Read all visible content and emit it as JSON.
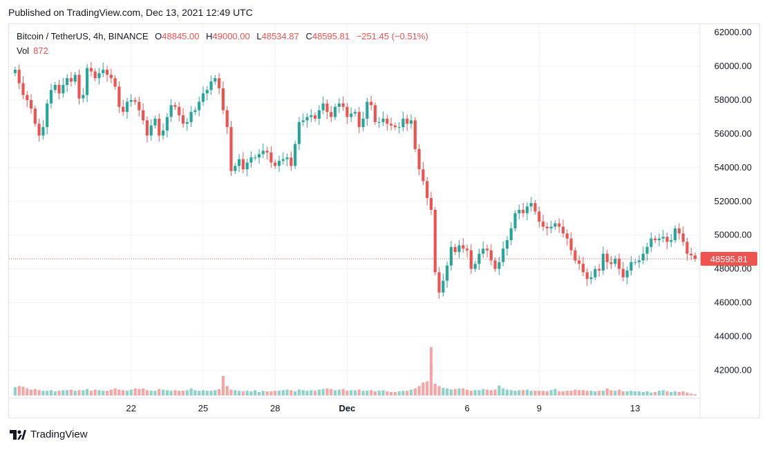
{
  "header": {
    "published": "Published on TradingView.com, Dec 13, 2021 12:49 UTC"
  },
  "legend": {
    "symbol": "Bitcoin / TetherUS, 4h, BINANCE",
    "o_label": "O",
    "o_value": "48845.00",
    "h_label": "H",
    "h_value": "49000.00",
    "l_label": "L",
    "l_value": "48534.87",
    "c_label": "C",
    "c_value": "48595.81",
    "change": "−251.45 (−0.51%)",
    "vol_label": "Vol",
    "vol_value": "872"
  },
  "footer": {
    "brand": "TradingView"
  },
  "colors": {
    "up": "#26a69a",
    "down": "#ef5350",
    "up_vol": "#8ed1c9",
    "down_vol": "#f5a6a4",
    "grid": "#f0f3fa"
  },
  "chart_data": {
    "type": "candlestick",
    "symbol": "BTCUSDT",
    "interval": "4h",
    "ylim": [
      40500,
      62500
    ],
    "y_ticks": [
      "62000.00",
      "60000.00",
      "58000.00",
      "56000.00",
      "54000.00",
      "52000.00",
      "50000.00",
      "48000.00",
      "46000.00",
      "44000.00",
      "42000.00"
    ],
    "x_ticks": [
      {
        "label": "22",
        "index": 29
      },
      {
        "label": "25",
        "index": 47
      },
      {
        "label": "28",
        "index": 65
      },
      {
        "label": "Dec",
        "index": 83
      },
      {
        "label": "6",
        "index": 113
      },
      {
        "label": "9",
        "index": 131
      },
      {
        "label": "13",
        "index": 155
      }
    ],
    "last_price": "48595.81",
    "closes": [
      59800,
      59000,
      58300,
      58000,
      57500,
      56600,
      55900,
      56400,
      57800,
      58600,
      58900,
      58400,
      58900,
      59300,
      59100,
      59500,
      58100,
      58300,
      59900,
      59700,
      59300,
      59600,
      59800,
      59500,
      59300,
      58800,
      57600,
      57300,
      57900,
      58000,
      57900,
      57400,
      56800,
      55900,
      56500,
      56900,
      55900,
      56200,
      57000,
      57700,
      57600,
      57100,
      56600,
      56700,
      57300,
      57400,
      57900,
      58400,
      58600,
      59100,
      59300,
      58700,
      57400,
      56400,
      53800,
      54100,
      54500,
      53900,
      54300,
      54600,
      54600,
      54800,
      55000,
      54900,
      54300,
      54100,
      54400,
      54500,
      54600,
      54100,
      55400,
      56700,
      56800,
      57000,
      57100,
      56900,
      57400,
      57800,
      57300,
      57000,
      57600,
      57800,
      57600,
      57000,
      57200,
      57300,
      56400,
      56900,
      57900,
      57700,
      56700,
      56700,
      56900,
      56600,
      56500,
      56400,
      56400,
      56900,
      56600,
      56800,
      55100,
      53900,
      53200,
      52200,
      51500,
      47800,
      46600,
      47300,
      48200,
      49300,
      49000,
      49400,
      49200,
      49100,
      48000,
      48300,
      48900,
      49200,
      49100,
      48500,
      48000,
      48400,
      49200,
      49700,
      50400,
      51300,
      51500,
      51300,
      51700,
      51900,
      51400,
      50800,
      50500,
      50400,
      50500,
      50700,
      50500,
      50100,
      49800,
      49100,
      48500,
      48300,
      47800,
      47400,
      47500,
      48000,
      47900,
      48900,
      48400,
      48300,
      48600,
      48000,
      47500,
      47900,
      48400,
      48400,
      48500,
      48900,
      49300,
      49800,
      49700,
      49800,
      49900,
      49600,
      49700,
      50400,
      50100,
      49600,
      48900,
      48800,
      48596
    ],
    "volume": [
      14,
      16,
      15,
      12,
      10,
      11,
      9,
      8,
      8,
      9,
      7,
      8,
      9,
      9,
      10,
      8,
      9,
      9,
      11,
      8,
      10,
      9,
      8,
      8,
      10,
      12,
      10,
      9,
      8,
      10,
      12,
      11,
      12,
      9,
      8,
      8,
      11,
      10,
      9,
      8,
      9,
      8,
      8,
      9,
      12,
      9,
      8,
      9,
      8,
      8,
      9,
      11,
      33,
      16,
      10,
      9,
      8,
      7,
      8,
      7,
      9,
      6,
      8,
      7,
      7,
      8,
      8,
      9,
      10,
      9,
      7,
      10,
      9,
      8,
      9,
      8,
      10,
      11,
      12,
      11,
      9,
      10,
      11,
      8,
      9,
      9,
      10,
      8,
      8,
      9,
      7,
      8,
      9,
      7,
      6,
      6,
      7,
      8,
      8,
      10,
      12,
      16,
      22,
      24,
      82,
      20,
      16,
      13,
      12,
      10,
      11,
      12,
      12,
      10,
      8,
      9,
      9,
      11,
      10,
      9,
      10,
      17,
      12,
      10,
      9,
      8,
      9,
      9,
      10,
      8,
      8,
      8,
      8,
      7,
      9,
      11,
      7,
      7,
      8,
      8,
      10,
      9,
      9,
      8,
      8,
      7,
      8,
      8,
      12,
      9,
      8,
      10,
      7,
      7,
      8,
      7,
      7,
      6,
      7,
      5,
      6,
      8,
      9,
      7,
      6,
      7,
      6,
      7,
      5,
      3,
      2
    ]
  }
}
